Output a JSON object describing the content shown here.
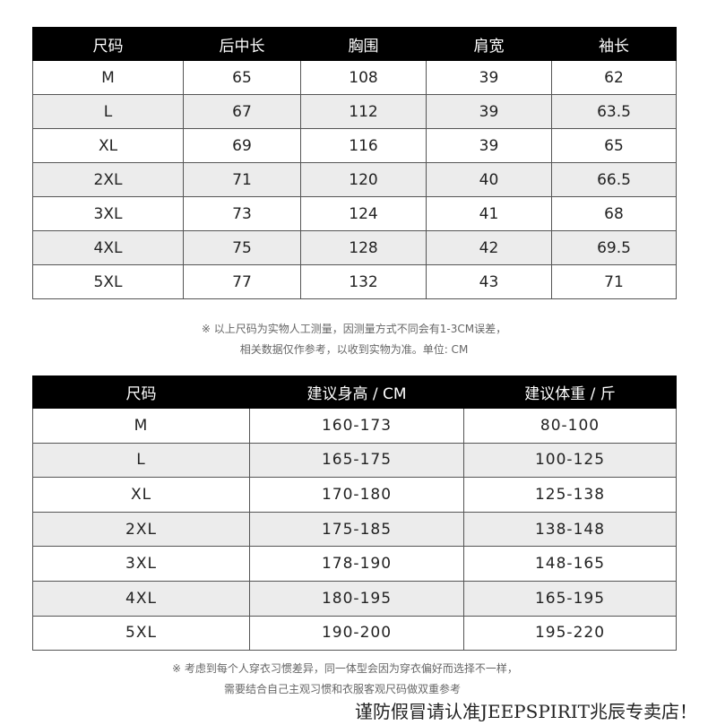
{
  "measure_table": {
    "headers": [
      "尺码",
      "后中长",
      "胸围",
      "肩宽",
      "袖长"
    ],
    "rows": [
      [
        "M",
        "65",
        "108",
        "39",
        "62"
      ],
      [
        "L",
        "67",
        "112",
        "39",
        "63.5"
      ],
      [
        "XL",
        "69",
        "116",
        "39",
        "65"
      ],
      [
        "2XL",
        "71",
        "120",
        "40",
        "66.5"
      ],
      [
        "3XL",
        "73",
        "124",
        "41",
        "68"
      ],
      [
        "4XL",
        "75",
        "128",
        "42",
        "69.5"
      ],
      [
        "5XL",
        "77",
        "132",
        "43",
        "71"
      ]
    ],
    "note_line1": "※ 以上尺码为实物人工测量，因测量方式不同会有1-3CM误差，",
    "note_line2": "相关数据仅作参考，以收到实物为准。单位: CM"
  },
  "recommend_table": {
    "headers": [
      "尺码",
      "建议身高 / CM",
      "建议体重 / 斤"
    ],
    "rows": [
      [
        "M",
        "160-173",
        "80-100"
      ],
      [
        "L",
        "165-175",
        "100-125"
      ],
      [
        "XL",
        "170-180",
        "125-138"
      ],
      [
        "2XL",
        "175-185",
        "138-148"
      ],
      [
        "3XL",
        "178-190",
        "148-165"
      ],
      [
        "4XL",
        "180-195",
        "165-195"
      ],
      [
        "5XL",
        "190-200",
        "195-220"
      ]
    ],
    "note_line1": "※ 考虑到每个人穿衣习惯差异，同一体型会因为穿衣偏好而选择不一样，",
    "note_line2": "需要结合自己主观习惯和衣服客观尺码做双重参考"
  },
  "footer": "谨防假冒请认准JEEPSPIRIT兆辰专卖店！",
  "colors": {
    "header_bg": "#000000",
    "alt_row": "#ececec"
  }
}
